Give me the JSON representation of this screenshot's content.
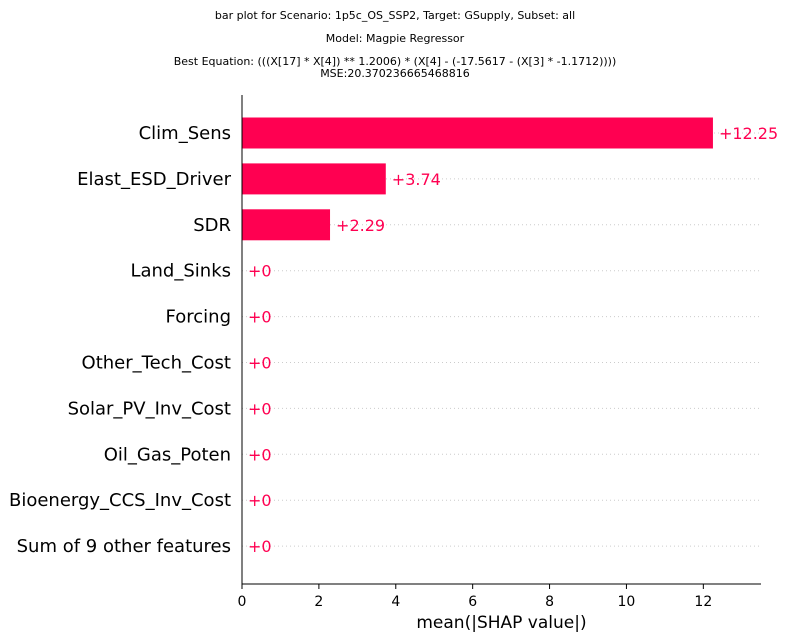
{
  "title_lines": [
    "bar plot for Scenario: 1p5c_OS_SSP2, Target: GSupply, Subset: all",
    "Model: Magpie Regressor",
    "Best Equation: (((X[17] * X[4]) ** 1.2006) * (X[4] - (-17.5617 - (X[3] * -1.1712))))",
    "MSE:20.370236665468816"
  ],
  "colors": {
    "bar": "#ff0051",
    "value_text": "#ff0051",
    "gridline": "#cccccc",
    "axis": "#000000"
  },
  "chart_data": {
    "type": "bar",
    "orientation": "horizontal",
    "categories": [
      "Clim_Sens",
      "Elast_ESD_Driver",
      "SDR",
      "Land_Sinks",
      "Forcing",
      "Other_Tech_Cost",
      "Solar_PV_Inv_Cost",
      "Oil_Gas_Poten",
      "Bioenergy_CCS_Inv_Cost",
      "Sum of 9 other features"
    ],
    "values": [
      12.25,
      3.74,
      2.29,
      0,
      0,
      0,
      0,
      0,
      0,
      0
    ],
    "value_labels": [
      "+12.25",
      "+3.74",
      "+2.29",
      "+0",
      "+0",
      "+0",
      "+0",
      "+0",
      "+0",
      "+0"
    ],
    "xlabel": "mean(|SHAP value|)",
    "xticks": [
      0,
      2,
      4,
      6,
      8,
      10,
      12
    ],
    "xlim": [
      0,
      13.5
    ],
    "grid": "dotted row guides"
  }
}
